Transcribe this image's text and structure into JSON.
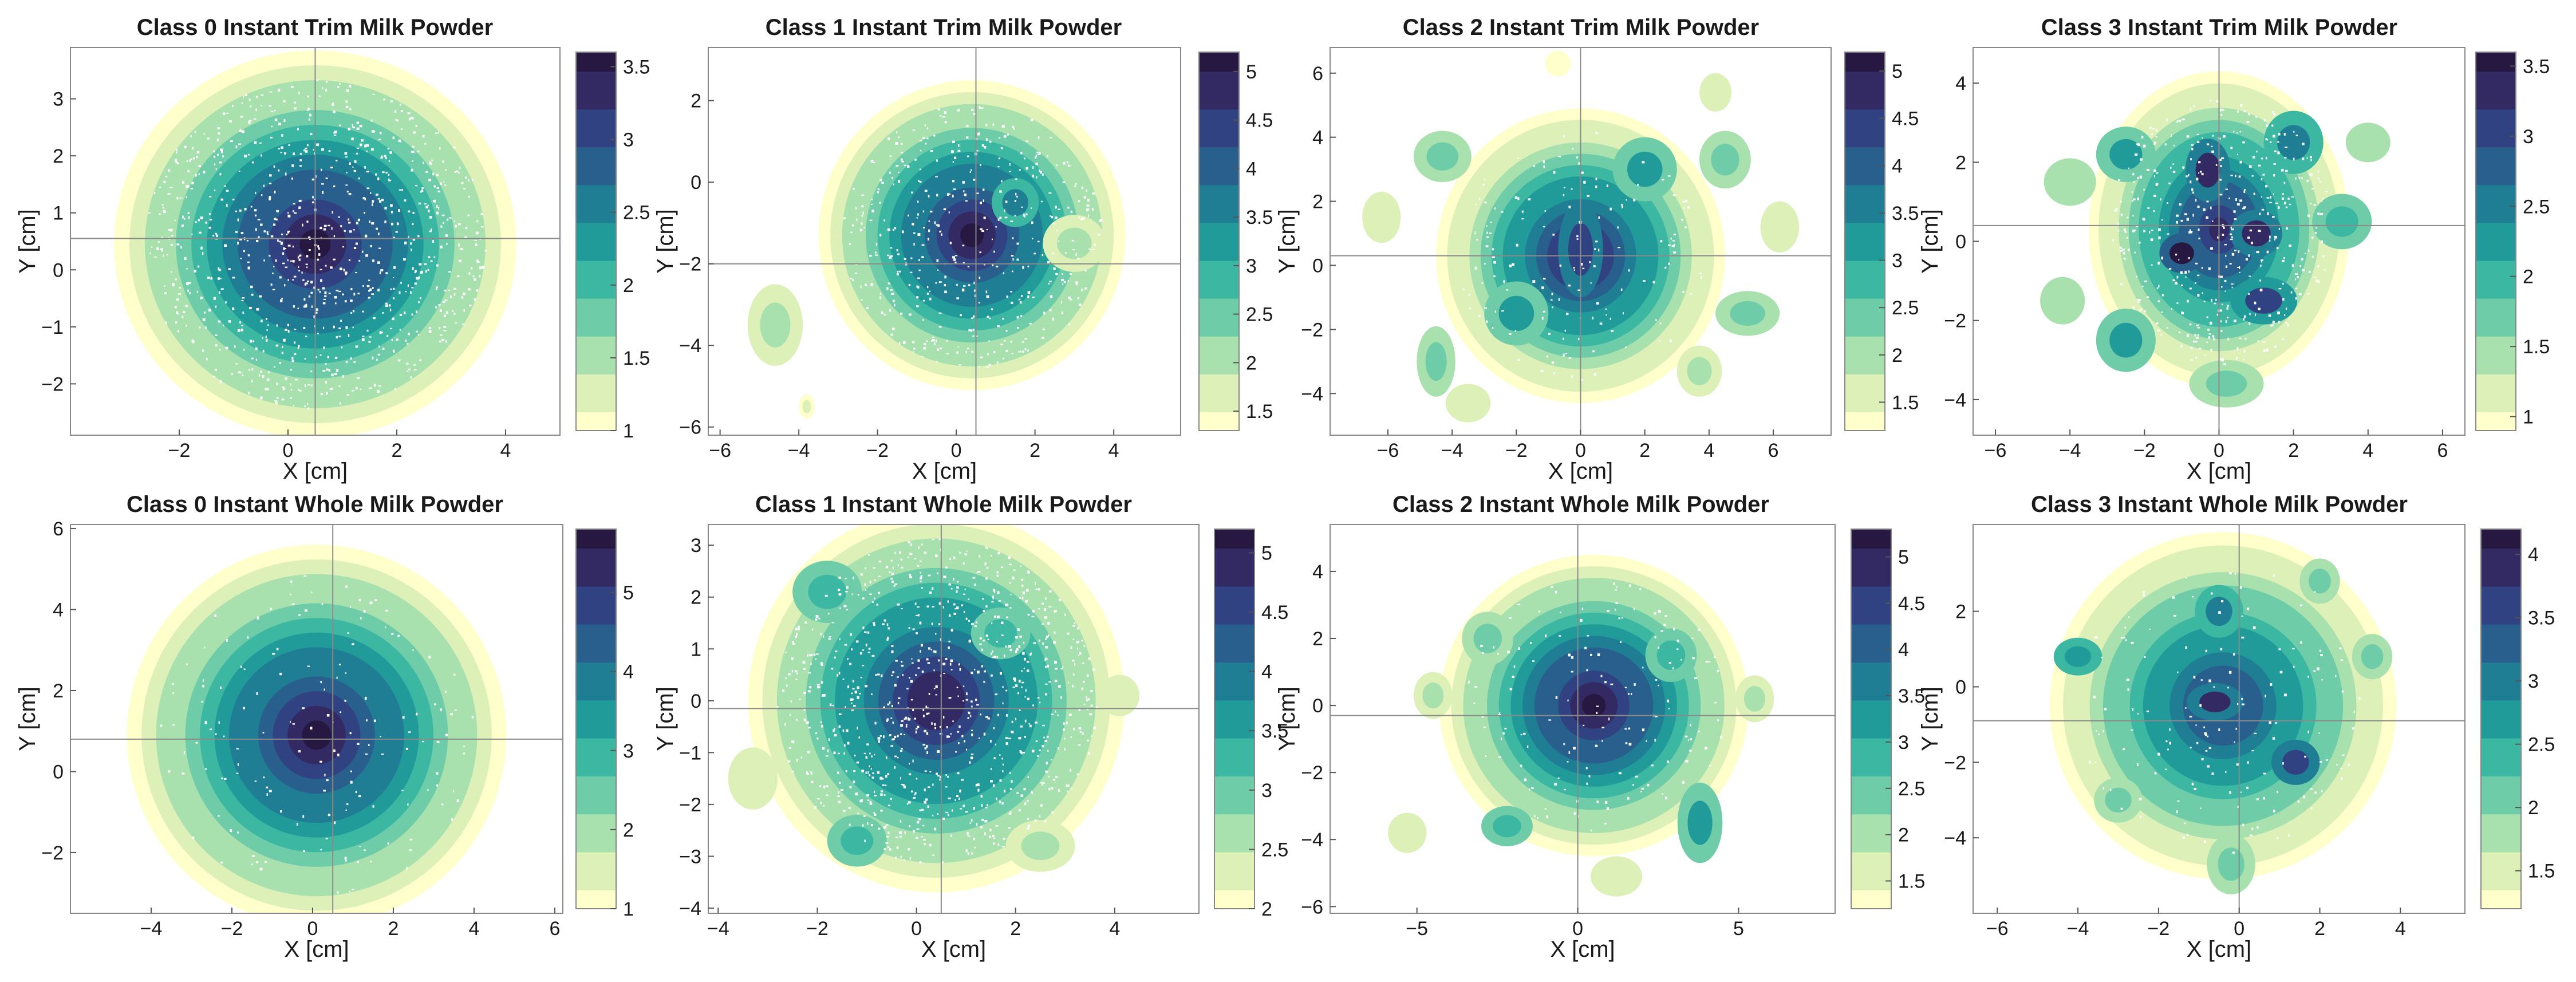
{
  "colormap": [
    "#ffffcc",
    "#dcf0b8",
    "#a8e0ae",
    "#6fcca8",
    "#3cb7a1",
    "#219b9a",
    "#1f7d94",
    "#285f8c",
    "#314283",
    "#332a63",
    "#261840"
  ],
  "chart_data": [
    {
      "type": "heatmap",
      "title": "Class 0 Instant Trim Milk Powder",
      "xlabel": "X [cm]",
      "ylabel": "Y [cm]",
      "xlim": [
        -4,
        5
      ],
      "ylim": [
        -2.9,
        3.9
      ],
      "xticks": [
        -2,
        0,
        2,
        4
      ],
      "yticks": [
        -2,
        -1,
        0,
        1,
        2,
        3
      ],
      "clim": [
        1,
        3.6
      ],
      "cticks": [
        1,
        1.5,
        2,
        2.5,
        3,
        3.5
      ],
      "crosshair": [
        0.5,
        0.55
      ],
      "center": [
        0.5,
        0.45
      ],
      "radius": [
        3.7,
        3.4
      ],
      "peak": 3.55,
      "blobs": [],
      "scatter": "dense"
    },
    {
      "type": "heatmap",
      "title": "Class 1 Instant Trim Milk Powder",
      "xlabel": "X [cm]",
      "ylabel": "Y [cm]",
      "xlim": [
        -6.3,
        5.7
      ],
      "ylim": [
        -6.2,
        3.3
      ],
      "xticks": [
        -6,
        -4,
        -2,
        0,
        2,
        4
      ],
      "yticks": [
        -6,
        -4,
        -2,
        0,
        2
      ],
      "clim": [
        1.3,
        5.2
      ],
      "cticks": [
        1.5,
        2,
        2.5,
        3,
        3.5,
        4,
        4.5,
        5
      ],
      "crosshair": [
        0.5,
        -2.0
      ],
      "center": [
        0.4,
        -1.3
      ],
      "radius": [
        3.9,
        3.8
      ],
      "peak": 5.1,
      "blobs": [
        [
          -4.6,
          -3.5,
          0.7,
          1.0,
          1.9
        ],
        [
          -3.8,
          -5.5,
          0.2,
          0.3,
          1.5
        ],
        [
          3.0,
          -1.5,
          0.8,
          0.7,
          2.0
        ],
        [
          1.5,
          -0.5,
          0.6,
          0.6,
          3.5
        ]
      ],
      "scatter": "medium"
    },
    {
      "type": "heatmap",
      "title": "Class 2 Instant Trim Milk Powder",
      "xlabel": "X [cm]",
      "ylabel": "Y [cm]",
      "xlim": [
        -7.8,
        7.8
      ],
      "ylim": [
        -5.3,
        6.8
      ],
      "xticks": [
        -6,
        -4,
        -2,
        0,
        2,
        4,
        6
      ],
      "yticks": [
        -4,
        -2,
        0,
        2,
        4,
        6
      ],
      "clim": [
        1.2,
        5.2
      ],
      "cticks": [
        1.5,
        2,
        2.5,
        3,
        3.5,
        4,
        4.5,
        5
      ],
      "crosshair": [
        0,
        0.3
      ],
      "center": [
        0,
        0.3
      ],
      "radius": [
        4.5,
        4.6
      ],
      "peak": 4.8,
      "blobs": [
        [
          -4.3,
          3.4,
          0.9,
          0.8,
          2.3
        ],
        [
          4.5,
          3.3,
          0.8,
          0.9,
          2.2
        ],
        [
          -6.2,
          1.5,
          0.6,
          0.8,
          1.6
        ],
        [
          6.2,
          1.2,
          0.6,
          0.8,
          1.6
        ],
        [
          -4.5,
          -3.0,
          0.6,
          1.1,
          2.4
        ],
        [
          5.2,
          -1.5,
          1.0,
          0.7,
          2.2
        ],
        [
          3.7,
          -3.3,
          0.7,
          0.8,
          2.0
        ],
        [
          4.2,
          5.4,
          0.5,
          0.6,
          1.6
        ],
        [
          -0.7,
          6.3,
          0.4,
          0.4,
          1.4
        ],
        [
          2.0,
          3.0,
          1.0,
          1.0,
          3.2
        ],
        [
          -2.0,
          -1.5,
          1.0,
          1.0,
          3.1
        ],
        [
          0,
          0.5,
          0.7,
          1.5,
          4.6
        ],
        [
          -3.5,
          -4.3,
          0.7,
          0.6,
          1.5
        ]
      ],
      "scatter": "light"
    },
    {
      "type": "heatmap",
      "title": "Class 3 Instant Trim Milk Powder",
      "xlabel": "X [cm]",
      "ylabel": "Y [cm]",
      "xlim": [
        -6.6,
        6.6
      ],
      "ylim": [
        -4.9,
        4.9
      ],
      "xticks": [
        -6,
        -4,
        -2,
        0,
        2,
        4,
        6
      ],
      "yticks": [
        -4,
        -2,
        0,
        2,
        4
      ],
      "clim": [
        0.9,
        3.6
      ],
      "cticks": [
        1,
        1.5,
        2,
        2.5,
        3,
        3.5
      ],
      "crosshair": [
        0,
        0.4
      ],
      "center": [
        0,
        0.3
      ],
      "radius": [
        3.5,
        4.0
      ],
      "peak": 3.3,
      "blobs": [
        [
          -1.0,
          -0.3,
          0.6,
          0.5,
          3.5
        ],
        [
          1.0,
          0.2,
          0.7,
          0.6,
          3.3
        ],
        [
          -0.3,
          1.8,
          0.6,
          0.8,
          3.2
        ],
        [
          1.2,
          -1.5,
          0.9,
          0.6,
          3.0
        ],
        [
          -2.5,
          -2.5,
          0.8,
          0.8,
          2.2
        ],
        [
          2.0,
          2.5,
          0.8,
          0.8,
          2.4
        ],
        [
          -2.5,
          2.2,
          0.8,
          0.7,
          2.2
        ],
        [
          3.3,
          0.5,
          0.8,
          0.7,
          2.0
        ],
        [
          -4.0,
          1.5,
          0.7,
          0.6,
          1.5
        ],
        [
          4.0,
          2.5,
          0.6,
          0.5,
          1.5
        ],
        [
          0.2,
          -3.6,
          1.0,
          0.6,
          1.8
        ],
        [
          -4.2,
          -1.5,
          0.6,
          0.6,
          1.5
        ]
      ],
      "scatter": "medium"
    },
    {
      "type": "heatmap",
      "title": "Class 0 Instant Whole Milk Powder",
      "xlabel": "X [cm]",
      "ylabel": "Y [cm]",
      "xlim": [
        -6,
        6.2
      ],
      "ylim": [
        -3.5,
        6.1
      ],
      "xticks": [
        -4,
        -2,
        0,
        2,
        4,
        6
      ],
      "yticks": [
        -2,
        0,
        2,
        4,
        6
      ],
      "clim": [
        1,
        5.8
      ],
      "cticks": [
        1,
        2,
        3,
        4,
        5
      ],
      "crosshair": [
        0.5,
        0.8
      ],
      "center": [
        0.1,
        0.9
      ],
      "radius": [
        4.7,
        4.7
      ],
      "peak": 5.6,
      "blobs": [],
      "scatter": "light"
    },
    {
      "type": "heatmap",
      "title": "Class 1 Instant Whole Milk Powder",
      "xlabel": "X [cm]",
      "ylabel": "Y [cm]",
      "xlim": [
        -4.2,
        5.7
      ],
      "ylim": [
        -4.1,
        3.4
      ],
      "xticks": [
        -4,
        -2,
        0,
        2,
        4
      ],
      "yticks": [
        -4,
        -3,
        -2,
        -1,
        0,
        1,
        2,
        3
      ],
      "clim": [
        2,
        5.2
      ],
      "cticks": [
        2,
        2.5,
        3,
        3.5,
        4,
        4.5,
        5
      ],
      "crosshair": [
        0.5,
        -0.15
      ],
      "center": [
        0.4,
        0
      ],
      "radius": [
        3.8,
        3.7
      ],
      "peak": 5.0,
      "blobs": [
        [
          -1.8,
          2.1,
          0.7,
          0.6,
          3.3
        ],
        [
          -1.2,
          -2.7,
          0.6,
          0.5,
          3.2
        ],
        [
          1.7,
          1.3,
          0.6,
          0.5,
          3.3
        ],
        [
          4.1,
          0.1,
          0.4,
          0.4,
          2.4
        ],
        [
          2.5,
          -2.8,
          0.7,
          0.5,
          2.6
        ],
        [
          -3.3,
          -1.5,
          0.5,
          0.6,
          2.4
        ]
      ],
      "scatter": "dense"
    },
    {
      "type": "heatmap",
      "title": "Class 2 Instant Whole Milk Powder",
      "xlabel": "X [cm]",
      "ylabel": "Y [cm]",
      "xlim": [
        -7.7,
        8
      ],
      "ylim": [
        -6.2,
        5.4
      ],
      "xticks": [
        -5,
        0,
        5
      ],
      "yticks": [
        -6,
        -4,
        -2,
        0,
        2,
        4
      ],
      "clim": [
        1.2,
        5.3
      ],
      "cticks": [
        1.5,
        2,
        2.5,
        3,
        3.5,
        4,
        4.5,
        5
      ],
      "crosshair": [
        0,
        -0.3
      ],
      "center": [
        0.5,
        0
      ],
      "radius": [
        4.8,
        4.5
      ],
      "peak": 5.2,
      "blobs": [
        [
          -2.8,
          2.0,
          0.8,
          0.8,
          2.6
        ],
        [
          -2.2,
          -3.6,
          0.8,
          0.6,
          2.8
        ],
        [
          2.9,
          1.5,
          0.8,
          0.8,
          3.0
        ],
        [
          3.8,
          -3.5,
          0.7,
          1.2,
          3.2
        ],
        [
          -4.5,
          0.3,
          0.6,
          0.7,
          2.0
        ],
        [
          5.5,
          0.2,
          0.6,
          0.7,
          1.9
        ],
        [
          1.2,
          -5.1,
          0.8,
          0.6,
          1.8
        ],
        [
          -5.3,
          -3.8,
          0.6,
          0.6,
          1.6
        ]
      ],
      "scatter": "light"
    },
    {
      "type": "heatmap",
      "title": "Class 3 Instant Whole Milk Powder",
      "xlabel": "X [cm]",
      "ylabel": "Y [cm]",
      "xlim": [
        -6.6,
        5.6
      ],
      "ylim": [
        -6.0,
        4.3
      ],
      "xticks": [
        -6,
        -4,
        -2,
        0,
        2,
        4
      ],
      "yticks": [
        -4,
        -2,
        0,
        2
      ],
      "clim": [
        1.2,
        4.2
      ],
      "cticks": [
        1.5,
        2,
        2.5,
        3,
        3.5,
        4
      ],
      "crosshair": [
        0,
        -0.9
      ],
      "center": [
        -0.4,
        -0.5
      ],
      "radius": [
        4.3,
        4.6
      ],
      "peak": 3.6,
      "blobs": [
        [
          -0.6,
          -0.4,
          0.7,
          0.5,
          3.8
        ],
        [
          -0.5,
          2.0,
          0.6,
          0.7,
          3.0
        ],
        [
          1.4,
          -2.0,
          0.6,
          0.6,
          3.6
        ],
        [
          -4.0,
          0.8,
          0.6,
          0.5,
          2.8
        ],
        [
          3.3,
          0.8,
          0.5,
          0.6,
          2.2
        ],
        [
          -0.2,
          -4.7,
          0.6,
          0.8,
          2.0
        ],
        [
          2.0,
          2.8,
          0.5,
          0.6,
          2.0
        ],
        [
          -3.0,
          -3.0,
          0.6,
          0.6,
          2.2
        ]
      ],
      "scatter": "light"
    }
  ]
}
